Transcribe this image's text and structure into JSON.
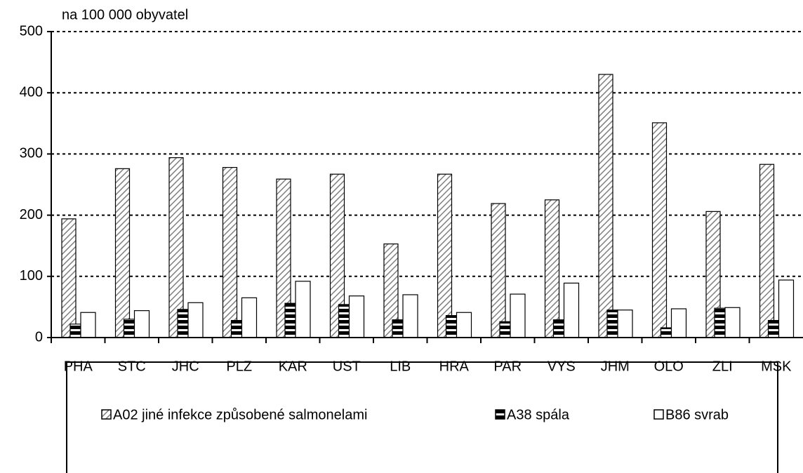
{
  "chart_data": {
    "type": "bar",
    "y_label": "na 100 000 obyvatel",
    "categories": [
      "PHA",
      "STC",
      "JHC",
      "PLZ",
      "KAR",
      "UST",
      "LIB",
      "HRA",
      "PAR",
      "VYS",
      "JHM",
      "OLO",
      "ZLI",
      "MSK"
    ],
    "series": [
      {
        "name": "A02 jiné infekce způsobené salmonelami",
        "color": "#808080",
        "pattern": "diagonal",
        "values": [
          194,
          276,
          294,
          278,
          259,
          267,
          153,
          267,
          219,
          225,
          430,
          351,
          206,
          283
        ]
      },
      {
        "name": "A38 spála",
        "color": "#000000",
        "pattern": "horizontal",
        "values": [
          22,
          30,
          46,
          28,
          56,
          54,
          29,
          36,
          26,
          29,
          45,
          16,
          48,
          28
        ]
      },
      {
        "name": "B86 svrab",
        "color": "#ffffff",
        "pattern": "none",
        "values": [
          41,
          44,
          57,
          65,
          92,
          68,
          70,
          41,
          71,
          89,
          45,
          47,
          49,
          94
        ]
      }
    ],
    "ylim": [
      0,
      500
    ],
    "yticks": [
      0,
      100,
      200,
      300,
      400,
      500
    ],
    "grid": true,
    "legend": "bottom"
  }
}
